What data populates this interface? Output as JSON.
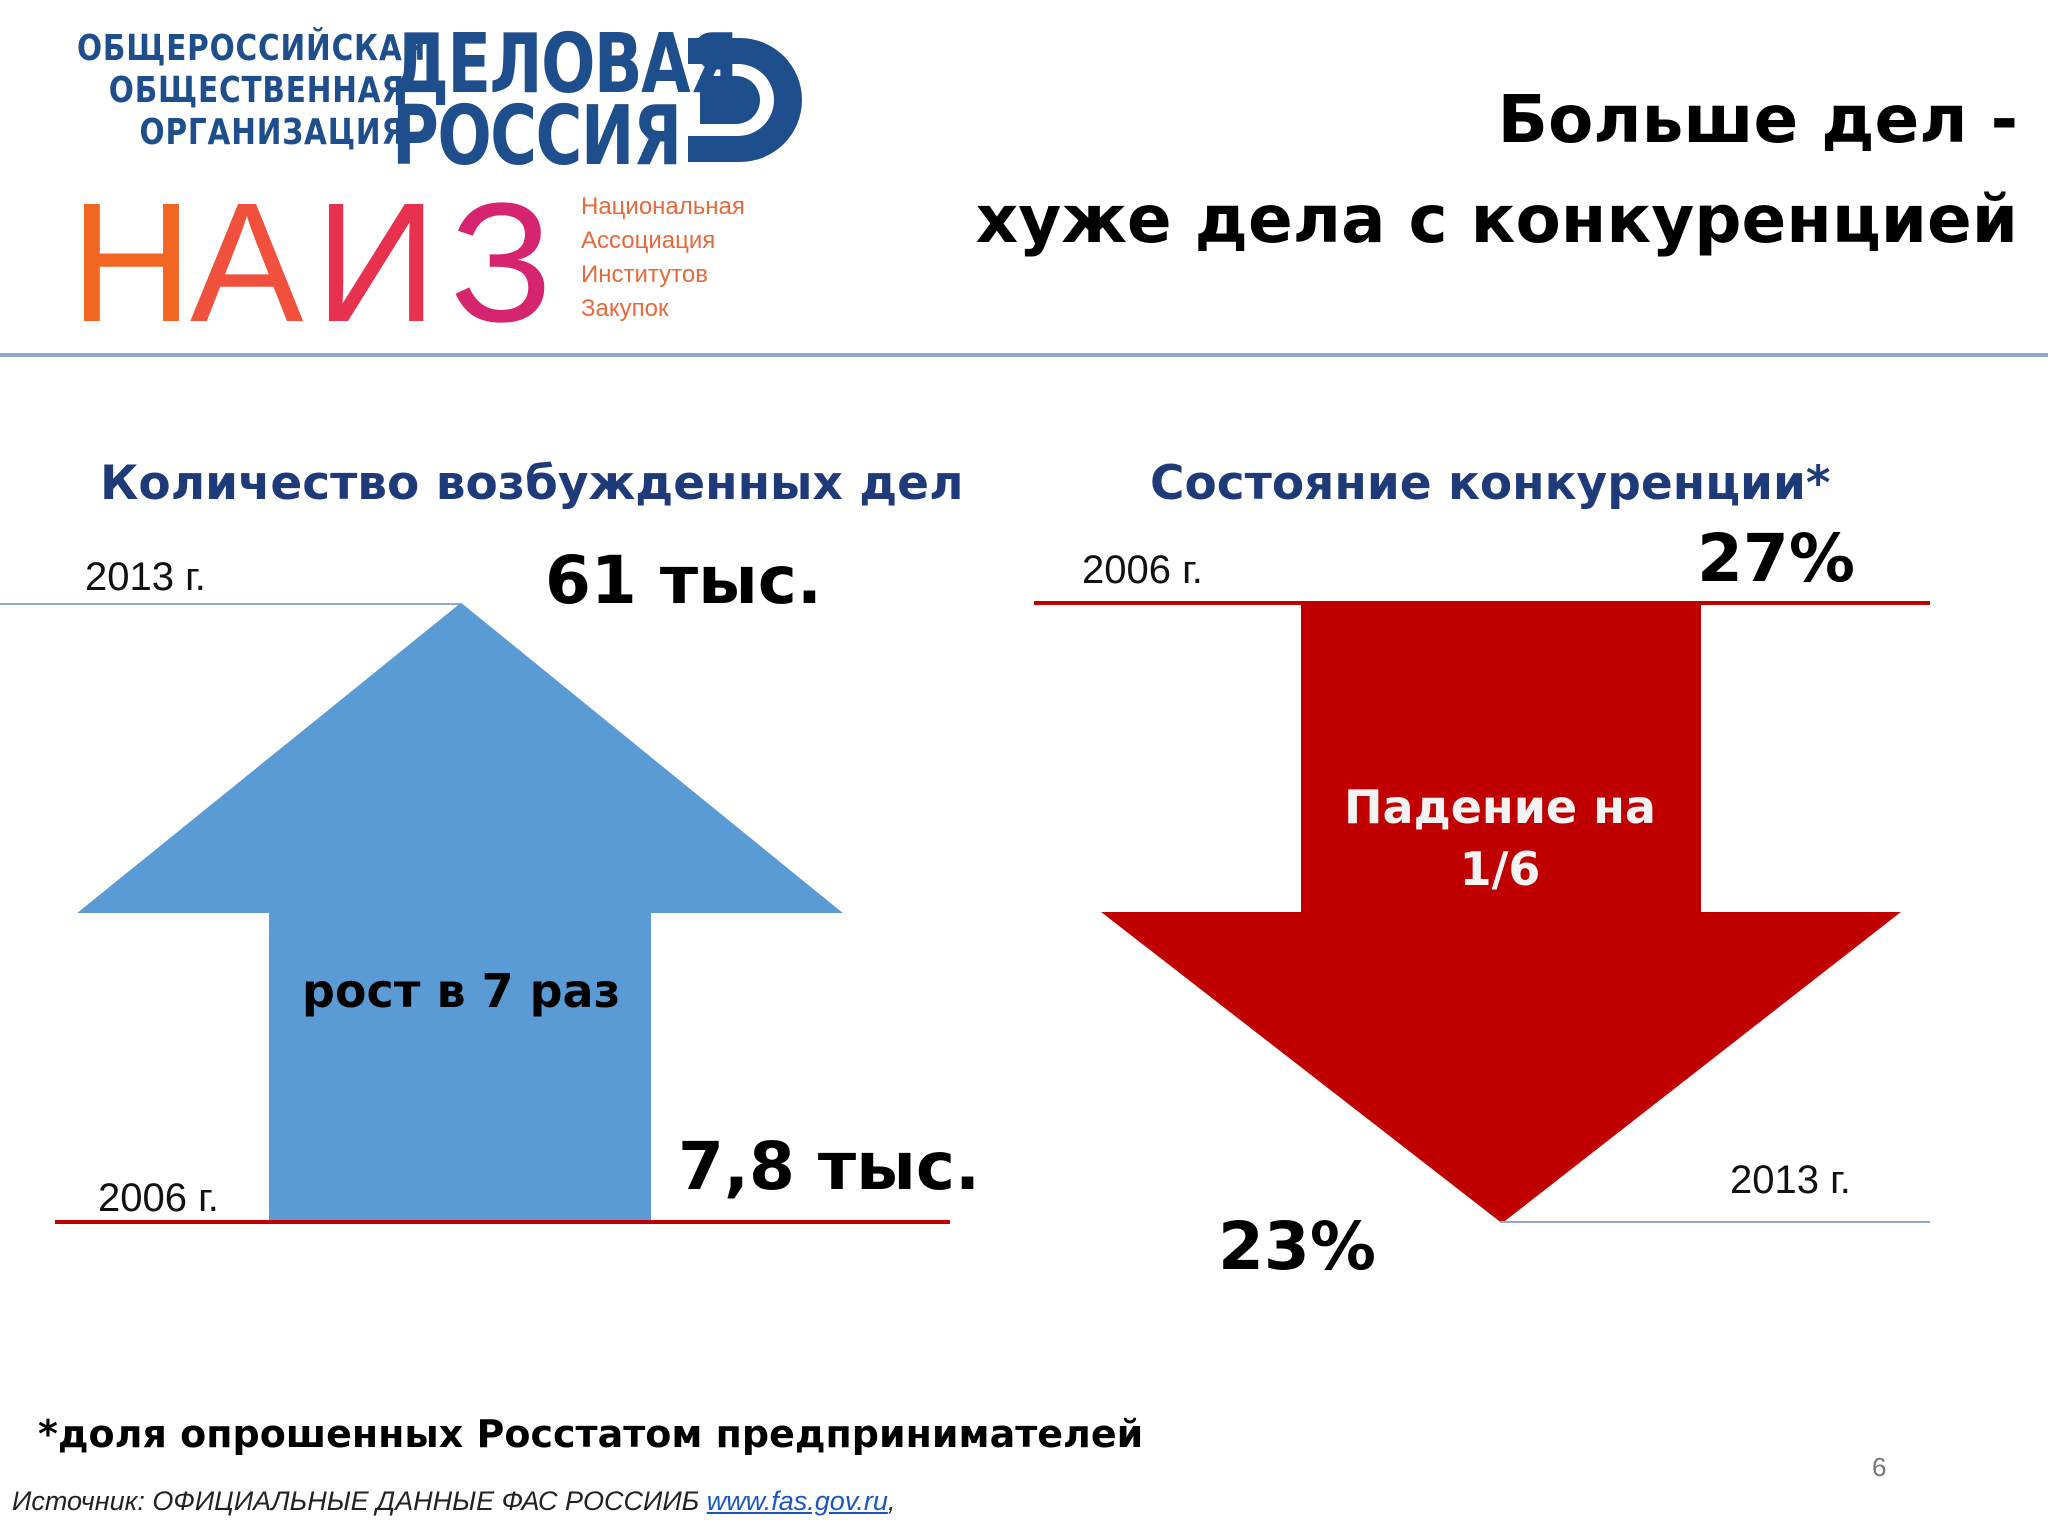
{
  "logo_delovaya": {
    "org_lines": [
      "ОБЩЕРОССИЙСКАЯ",
      "ОБЩЕСТВЕННАЯ",
      "ОРГАНИЗАЦИЯ"
    ],
    "name_line1": "ДЕЛОВАЯ",
    "name_line2": "РОССИЯ",
    "color": "#1f4e8c"
  },
  "logo_naiz": {
    "letters": [
      "Н",
      "А",
      "И",
      "З"
    ],
    "letter_colors": [
      "#f26522",
      "#f0503c",
      "#e8304f",
      "#d6246e"
    ],
    "side_lines": [
      "Национальная",
      "Ассоциация",
      "Институтов",
      "Закупок"
    ]
  },
  "title": {
    "line1": "Больше дел -",
    "line2": "хуже дела с конкуренцией"
  },
  "left_panel": {
    "heading": "Количество возбужденных дел",
    "top_year": "2013 г.",
    "top_value": "61 тыс.",
    "bottom_year": "2006 г.",
    "bottom_value": "7,8 тыс.",
    "arrow_label": "рост в 7 раз",
    "arrow_color": "#5b9bd5"
  },
  "right_panel": {
    "heading": "Состояние конкуренции*",
    "top_year": "2006 г.",
    "top_value": "27%",
    "bottom_year": "2013 г.",
    "bottom_value": "23%",
    "arrow_label_line1": "Падение на",
    "arrow_label_line2": "1/6",
    "arrow_color": "#c00000"
  },
  "footnote": "*доля опрошенных Росстатом предпринимателей",
  "source": {
    "prefix": "Источник:  ОФИЦИАЛЬНЫЕ ДАННЫЕ ФАС РОССИИБ ",
    "link": "www.fas.gov.ru",
    "suffix": ","
  },
  "page_number": "6",
  "colors": {
    "divider": "#8fa9c8",
    "red_line": "#c00000",
    "heading": "#1f3a78"
  }
}
